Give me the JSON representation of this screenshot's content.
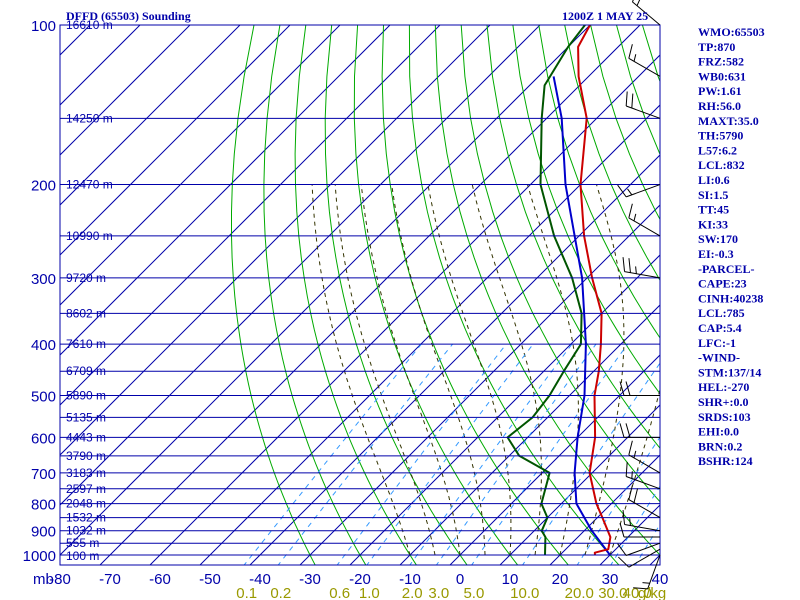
{
  "title_left": "DFFD (65503) Sounding",
  "title_right": "1200Z  1 MAY 25",
  "indices": [
    "WMO:65503",
    "TP:870",
    "FRZ:582",
    "WB0:631",
    "PW:1.61",
    "RH:56.0",
    "MAXT:35.0",
    "TH:5790",
    "L57:6.2",
    "LCL:832",
    "LI:0.6",
    "SI:1.5",
    "TT:45",
    "KI:33",
    "SW:170",
    "EI:-0.3",
    "-PARCEL-",
    "CAPE:23",
    "CINH:40238",
    "LCL:785",
    "CAP:5.4",
    "LFC:-1",
    "-WIND-",
    "STM:137/14",
    "HEL:-270",
    "SHR+:0.0",
    "SRDS:103",
    "EHI:0.0",
    "BRN:0.2",
    "BSHR:124"
  ],
  "colors": {
    "axes": "#0000aa",
    "dry_adiabat": "#00aa00",
    "moist_adiabat": "#333300",
    "mixing_ratio": "#3399ff",
    "temperature": "#cc0000",
    "dewpoint": "#005500",
    "parcel": "#0000cc",
    "wind_barb": "#000000",
    "mixing_label": "#999900"
  },
  "chart_data": {
    "type": "skew-t log-p sounding",
    "title": "DFFD (65503) Sounding",
    "valid_time": "1200Z  1 MAY 25",
    "pressure_axis_unit": "mb",
    "pressure_ticks": [
      "100",
      "200",
      "300",
      "400",
      "500",
      "600",
      "700",
      "800",
      "900",
      "1000"
    ],
    "pressure_range": [
      1000,
      100
    ],
    "temperature_ticks": [
      "-80",
      "-70",
      "-60",
      "-50",
      "-40",
      "-30",
      "-20",
      "-10",
      "0",
      "10",
      "20",
      "30",
      "40"
    ],
    "temperature_range": [
      -80,
      40
    ],
    "height_labels": [
      {
        "p": 1005,
        "label": "100 m"
      },
      {
        "p": 950,
        "label": "555 m"
      },
      {
        "p": 900,
        "label": "1032 m"
      },
      {
        "p": 850,
        "label": "1532 m"
      },
      {
        "p": 800,
        "label": "2048 m"
      },
      {
        "p": 750,
        "label": "2597 m"
      },
      {
        "p": 700,
        "label": "3183 m"
      },
      {
        "p": 650,
        "label": "3790 m"
      },
      {
        "p": 600,
        "label": "4443 m"
      },
      {
        "p": 550,
        "label": "5135 m"
      },
      {
        "p": 500,
        "label": "5890 m"
      },
      {
        "p": 450,
        "label": "6709 m"
      },
      {
        "p": 400,
        "label": "7610 m"
      },
      {
        "p": 350,
        "label": "8602 m"
      },
      {
        "p": 300,
        "label": "9720 m"
      },
      {
        "p": 250,
        "label": "10990 m"
      },
      {
        "p": 200,
        "label": "12470 m"
      },
      {
        "p": 150,
        "label": "14250 m"
      },
      {
        "p": 100,
        "label": "16610 m"
      }
    ],
    "mixing_ratio_unit": "g/kg",
    "mixing_ratio_labels": [
      "0.1",
      "0.2",
      "0.6",
      "1.0",
      "2.0",
      "3.0",
      "5.0",
      "10.0",
      "20.0",
      "30.0",
      "40.0"
    ],
    "dry_adiabats_theta_c": [
      -30,
      -20,
      -10,
      0,
      10,
      20,
      30,
      40,
      50,
      60,
      70,
      80,
      90,
      100,
      110,
      120,
      130,
      140,
      150,
      160,
      170
    ],
    "moist_adiabats_thetaw_c": [
      -10,
      -5,
      0,
      5,
      10,
      15,
      20,
      25,
      30
    ],
    "mixing_ratios_gkg": [
      0.1,
      0.2,
      0.6,
      1.0,
      2.0,
      3.0,
      5.0,
      10.0,
      20.0,
      30.0,
      40.0
    ],
    "temperature_profile": [
      {
        "p": 1000,
        "t": 27
      },
      {
        "p": 990,
        "t": 26.5
      },
      {
        "p": 975,
        "t": 28.5
      },
      {
        "p": 925,
        "t": 26.5
      },
      {
        "p": 850,
        "t": 21
      },
      {
        "p": 800,
        "t": 17
      },
      {
        "p": 700,
        "t": 9.5
      },
      {
        "p": 600,
        "t": 3.5
      },
      {
        "p": 500,
        "t": -5
      },
      {
        "p": 450,
        "t": -9
      },
      {
        "p": 400,
        "t": -14
      },
      {
        "p": 350,
        "t": -20
      },
      {
        "p": 300,
        "t": -29
      },
      {
        "p": 250,
        "t": -39
      },
      {
        "p": 200,
        "t": -50
      },
      {
        "p": 150,
        "t": -62
      },
      {
        "p": 125,
        "t": -72
      },
      {
        "p": 110,
        "t": -78
      },
      {
        "p": 100,
        "t": -80
      }
    ],
    "dewpoint_profile": [
      {
        "p": 1000,
        "t": 17
      },
      {
        "p": 925,
        "t": 13.5
      },
      {
        "p": 900,
        "t": 11.5
      },
      {
        "p": 850,
        "t": 10
      },
      {
        "p": 800,
        "t": 6
      },
      {
        "p": 700,
        "t": 1.5
      },
      {
        "p": 650,
        "t": -8
      },
      {
        "p": 600,
        "t": -14
      },
      {
        "p": 550,
        "t": -13
      },
      {
        "p": 500,
        "t": -14
      },
      {
        "p": 450,
        "t": -16
      },
      {
        "p": 400,
        "t": -18
      },
      {
        "p": 350,
        "t": -24
      },
      {
        "p": 300,
        "t": -33
      },
      {
        "p": 250,
        "t": -45
      },
      {
        "p": 200,
        "t": -58
      },
      {
        "p": 150,
        "t": -71
      },
      {
        "p": 130,
        "t": -77
      },
      {
        "p": 110,
        "t": -80
      },
      {
        "p": 100,
        "t": -81
      }
    ],
    "parcel_profile": [
      {
        "p": 1000,
        "t": 30
      },
      {
        "p": 900,
        "t": 21.5
      },
      {
        "p": 800,
        "t": 13
      },
      {
        "p": 700,
        "t": 6.5
      },
      {
        "p": 600,
        "t": 0
      },
      {
        "p": 500,
        "t": -7
      },
      {
        "p": 400,
        "t": -17
      },
      {
        "p": 300,
        "t": -31
      },
      {
        "p": 200,
        "t": -53
      },
      {
        "p": 150,
        "t": -67
      },
      {
        "p": 125,
        "t": -77
      }
    ],
    "wind_barbs": [
      {
        "p": 1000,
        "dir": 200,
        "spd": 15
      },
      {
        "p": 975,
        "dir": 240,
        "spd": 10
      },
      {
        "p": 950,
        "dir": 250,
        "spd": 10
      },
      {
        "p": 925,
        "dir": 270,
        "spd": 10
      },
      {
        "p": 900,
        "dir": 280,
        "spd": 15
      },
      {
        "p": 850,
        "dir": 300,
        "spd": 20
      },
      {
        "p": 750,
        "dir": 290,
        "spd": 15
      },
      {
        "p": 700,
        "dir": 300,
        "spd": 15
      },
      {
        "p": 600,
        "dir": 270,
        "spd": 20
      },
      {
        "p": 500,
        "dir": 270,
        "spd": 20
      },
      {
        "p": 300,
        "dir": 280,
        "spd": 25
      },
      {
        "p": 250,
        "dir": 300,
        "spd": 15
      },
      {
        "p": 200,
        "dir": 250,
        "spd": 15
      },
      {
        "p": 150,
        "dir": 290,
        "spd": 20
      },
      {
        "p": 125,
        "dir": 300,
        "spd": 15
      },
      {
        "p": 100,
        "dir": 310,
        "spd": 15
      }
    ]
  }
}
